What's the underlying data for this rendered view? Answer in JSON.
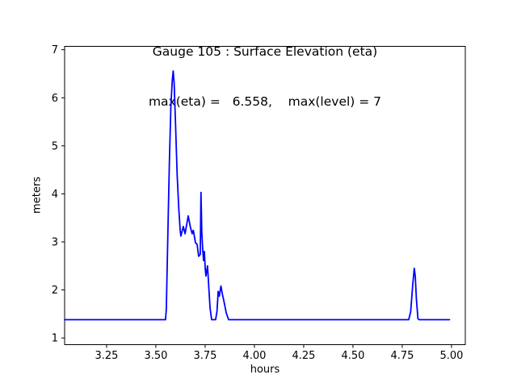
{
  "figure": {
    "title_line1": "Gauge 105 : Surface Elevation (eta)",
    "title_line2": "max(eta) =   6.558,    max(level) = 7",
    "xlabel": "hours",
    "ylabel": "meters"
  },
  "chart_data": {
    "type": "line",
    "title": "Gauge 105 : Surface Elevation (eta)",
    "subtitle": "max(eta) =   6.558,    max(level) = 7",
    "xlabel": "hours",
    "ylabel": "meters",
    "max_eta": 6.558,
    "max_level": 7,
    "xlim": [
      3.037,
      5.07
    ],
    "ylim": [
      0.86,
      7.07
    ],
    "xticks": [
      3.25,
      3.5,
      3.75,
      4.0,
      4.25,
      4.5,
      4.75,
      5.0
    ],
    "xtick_labels": [
      "3.25",
      "3.50",
      "3.75",
      "4.00",
      "4.25",
      "4.50",
      "4.75",
      "5.00"
    ],
    "yticks": [
      1,
      2,
      3,
      4,
      5,
      6,
      7
    ],
    "ytick_labels": [
      "1",
      "2",
      "3",
      "4",
      "5",
      "6",
      "7"
    ],
    "grid": false,
    "legend": null,
    "line_color": "#0000ff",
    "background_color": "#ffffff",
    "series": [
      {
        "name": "eta",
        "x": [
          3.037,
          3.549,
          3.553,
          3.56,
          3.568,
          3.576,
          3.583,
          3.588,
          3.593,
          3.6,
          3.608,
          3.616,
          3.623,
          3.627,
          3.639,
          3.648,
          3.664,
          3.676,
          3.684,
          3.69,
          3.701,
          3.709,
          3.717,
          3.725,
          3.729,
          3.733,
          3.738,
          3.742,
          3.746,
          3.75,
          3.754,
          3.762,
          3.768,
          3.775,
          3.783,
          3.803,
          3.81,
          3.816,
          3.822,
          3.83,
          3.838,
          3.844,
          3.857,
          3.869,
          4.783,
          4.793,
          4.803,
          4.811,
          4.816,
          4.822,
          4.83,
          4.836,
          4.99
        ],
        "y": [
          1.38,
          1.38,
          1.6,
          3.0,
          4.6,
          5.8,
          6.35,
          6.558,
          6.3,
          5.4,
          4.4,
          3.7,
          3.25,
          3.12,
          3.32,
          3.17,
          3.54,
          3.29,
          3.17,
          3.24,
          2.98,
          2.95,
          2.7,
          2.74,
          4.03,
          3.2,
          2.83,
          2.61,
          2.8,
          2.45,
          2.29,
          2.5,
          2.1,
          1.61,
          1.38,
          1.38,
          1.55,
          1.97,
          1.87,
          2.08,
          1.9,
          1.79,
          1.52,
          1.38,
          1.38,
          1.55,
          2.1,
          2.45,
          2.3,
          1.8,
          1.4,
          1.38,
          1.38
        ]
      }
    ]
  }
}
